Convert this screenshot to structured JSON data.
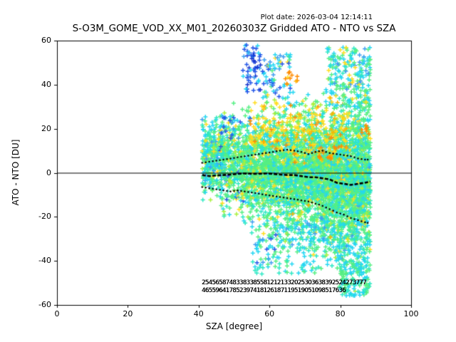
{
  "header": {
    "title": "S-O3M_GOME_VOD_XX_M01_20260303Z Gridded ATO - NTO vs SZA",
    "plot_date": "Plot date: 2026-03-04 12:14:11"
  },
  "chart_data": {
    "type": "scatter",
    "title": "S-O3M_GOME_VOD_XX_M01_20260303Z Gridded ATO - NTO vs SZA",
    "xlabel": "SZA [degree]",
    "ylabel": "ATO - NTO [DU]",
    "xlim": [
      0,
      100
    ],
    "ylim": [
      -60,
      60
    ],
    "x_ticks": [
      0,
      20,
      40,
      60,
      80,
      100
    ],
    "y_ticks": [
      -60,
      -40,
      -20,
      0,
      20,
      40,
      60
    ],
    "grid": false,
    "legend": "none",
    "marker": "plus",
    "zero_line_y": 0,
    "scatter_x_range": [
      41,
      88.5
    ],
    "stat_x": [
      41,
      43,
      45,
      47,
      49,
      51,
      53,
      55,
      57,
      59,
      61,
      63,
      65,
      67,
      69,
      71,
      73,
      75,
      77,
      79,
      81,
      83,
      85,
      87,
      88.5
    ],
    "median_line": [
      -1,
      -1.5,
      -1.2,
      -1,
      -0.8,
      -0.5,
      -0.3,
      -0.5,
      -0.5,
      -0.3,
      -0.5,
      -0.8,
      -1,
      -1,
      -1.5,
      -2,
      -2,
      -2.5,
      -3,
      -4.5,
      -5,
      -5.5,
      -5,
      -4.5,
      -4
    ],
    "upper_dotted": [
      4.5,
      5,
      5.5,
      6,
      6.5,
      7,
      7.5,
      8,
      8.5,
      9,
      9.5,
      10,
      10.5,
      10,
      9.5,
      8.5,
      9.5,
      10,
      9,
      8.5,
      8,
      7.5,
      6.5,
      6,
      6
    ],
    "lower_dotted": [
      -6.5,
      -7,
      -7.5,
      -8,
      -8.5,
      -8,
      -8.5,
      -9,
      -9.5,
      -10,
      -10.5,
      -11,
      -11.5,
      -12,
      -12.5,
      -13,
      -14,
      -15,
      -16.5,
      -18,
      -19,
      -20.5,
      -21.5,
      -22.5,
      -23
    ],
    "bin_count_rows": [
      {
        "y": -50,
        "text": "254565874833833855812121332025303638392524273777"
      },
      {
        "y": -53.5,
        "text": "465596417852397418126187119519051098517636"
      }
    ],
    "palette": {
      "green": "#55ef83",
      "teal": "#2ce8c4",
      "cyan": "#24d6f2",
      "skyblue": "#3f9ff0",
      "blue": "#2356e8",
      "darkblue": "#1633cc",
      "yellow": "#ffdd1f",
      "gold": "#ffb300",
      "orange": "#ff8c00",
      "greenyellow": "#a8f03c",
      "stat_black": "#000000",
      "axes_black": "#000000"
    },
    "seed": 42,
    "scatter_clusters": [
      {
        "x0": 41,
        "x1": 46,
        "n": 240,
        "dist": {
          "t": "g",
          "c": 6,
          "s": 8,
          "lo": -14,
          "hi": 28
        },
        "cols": [
          [
            "green",
            50
          ],
          [
            "teal",
            16
          ],
          [
            "cyan",
            16
          ],
          [
            "greenyellow",
            8
          ],
          [
            "yellow",
            8
          ],
          [
            "skyblue",
            2
          ]
        ]
      },
      {
        "x0": 46,
        "x1": 52,
        "n": 360,
        "dist": {
          "t": "g",
          "c": 4,
          "s": 10,
          "lo": -22,
          "hi": 34
        },
        "cols": [
          [
            "green",
            52
          ],
          [
            "teal",
            15
          ],
          [
            "cyan",
            15
          ],
          [
            "greenyellow",
            8
          ],
          [
            "yellow",
            8
          ],
          [
            "blue",
            2
          ]
        ]
      },
      {
        "x0": 52,
        "x1": 58,
        "n": 470,
        "dist": {
          "t": "g",
          "c": 3,
          "s": 11,
          "lo": -30,
          "hi": 38
        },
        "cols": [
          [
            "green",
            52
          ],
          [
            "teal",
            14
          ],
          [
            "cyan",
            16
          ],
          [
            "greenyellow",
            8
          ],
          [
            "yellow",
            9
          ],
          [
            "blue",
            1
          ]
        ]
      },
      {
        "x0": 58,
        "x1": 64,
        "n": 560,
        "dist": {
          "t": "g",
          "c": 1,
          "s": 12,
          "lo": -38,
          "hi": 38
        },
        "cols": [
          [
            "green",
            52
          ],
          [
            "teal",
            14
          ],
          [
            "cyan",
            17
          ],
          [
            "greenyellow",
            8
          ],
          [
            "yellow",
            9
          ]
        ]
      },
      {
        "x0": 64,
        "x1": 70,
        "n": 660,
        "dist": {
          "t": "g",
          "c": 0,
          "s": 13,
          "lo": -42,
          "hi": 38
        },
        "cols": [
          [
            "green",
            50
          ],
          [
            "teal",
            15
          ],
          [
            "cyan",
            18
          ],
          [
            "greenyellow",
            8
          ],
          [
            "yellow",
            8
          ],
          [
            "gold",
            1
          ]
        ]
      },
      {
        "x0": 70,
        "x1": 76,
        "n": 780,
        "dist": {
          "t": "g",
          "c": -1,
          "s": 14,
          "lo": -46,
          "hi": 38
        },
        "cols": [
          [
            "green",
            48
          ],
          [
            "teal",
            16
          ],
          [
            "cyan",
            20
          ],
          [
            "greenyellow",
            7
          ],
          [
            "yellow",
            8
          ],
          [
            "gold",
            1
          ]
        ]
      },
      {
        "x0": 76,
        "x1": 82,
        "n": 920,
        "dist": {
          "t": "g",
          "c": -2,
          "s": 15,
          "lo": -52,
          "hi": 40
        },
        "cols": [
          [
            "green",
            46
          ],
          [
            "teal",
            16
          ],
          [
            "cyan",
            22
          ],
          [
            "greenyellow",
            7
          ],
          [
            "yellow",
            8
          ],
          [
            "gold",
            1
          ]
        ]
      },
      {
        "x0": 82,
        "x1": 88.5,
        "n": 1020,
        "dist": {
          "t": "g",
          "c": -2,
          "s": 16,
          "lo": -56,
          "hi": 44
        },
        "cols": [
          [
            "green",
            44
          ],
          [
            "teal",
            16
          ],
          [
            "cyan",
            24
          ],
          [
            "greenyellow",
            7
          ],
          [
            "yellow",
            8
          ],
          [
            "skyblue",
            1
          ]
        ]
      },
      {
        "x0": 55,
        "x1": 88,
        "n": 240,
        "dist": {
          "t": "u",
          "lo": -46,
          "hi": -22
        },
        "cols": [
          [
            "cyan",
            48
          ],
          [
            "teal",
            22
          ],
          [
            "green",
            26
          ],
          [
            "skyblue",
            4
          ]
        ]
      },
      {
        "x0": 80,
        "x1": 88.5,
        "n": 130,
        "dist": {
          "t": "u",
          "lo": -56,
          "hi": -40
        },
        "cols": [
          [
            "cyan",
            50
          ],
          [
            "green",
            30
          ],
          [
            "teal",
            20
          ]
        ]
      },
      {
        "x0": 52.5,
        "x1": 57.5,
        "n": 55,
        "dist": {
          "t": "u",
          "lo": 36,
          "hi": 58
        },
        "cols": [
          [
            "blue",
            58
          ],
          [
            "darkblue",
            18
          ],
          [
            "cyan",
            18
          ],
          [
            "skyblue",
            6
          ]
        ]
      },
      {
        "x0": 58,
        "x1": 66,
        "n": 70,
        "dist": {
          "t": "u",
          "lo": 34,
          "hi": 54
        },
        "cols": [
          [
            "cyan",
            40
          ],
          [
            "blue",
            22
          ],
          [
            "skyblue",
            12
          ],
          [
            "green",
            16
          ],
          [
            "yellow",
            10
          ]
        ]
      },
      {
        "x0": 64.5,
        "x1": 68,
        "n": 10,
        "dist": {
          "t": "u",
          "lo": 40,
          "hi": 46
        },
        "cols": [
          [
            "orange",
            70
          ],
          [
            "gold",
            30
          ]
        ]
      },
      {
        "x0": 76,
        "x1": 88.5,
        "n": 210,
        "dist": {
          "t": "u",
          "lo": 30,
          "hi": 57
        },
        "cols": [
          [
            "cyan",
            35
          ],
          [
            "green",
            32
          ],
          [
            "yellow",
            14
          ],
          [
            "skyblue",
            12
          ],
          [
            "teal",
            7
          ]
        ]
      },
      {
        "x0": 54,
        "x1": 82,
        "n": 190,
        "dist": {
          "t": "g",
          "c": 18,
          "s": 8,
          "lo": 4,
          "hi": 34
        },
        "cols": [
          [
            "yellow",
            58
          ],
          [
            "gold",
            26
          ],
          [
            "greenyellow",
            10
          ],
          [
            "orange",
            6
          ]
        ]
      },
      {
        "x0": 74,
        "x1": 80,
        "n": 18,
        "dist": {
          "t": "u",
          "lo": 6,
          "hi": 13
        },
        "cols": [
          [
            "orange",
            80
          ],
          [
            "gold",
            20
          ]
        ]
      },
      {
        "x0": 86,
        "x1": 88.5,
        "n": 8,
        "dist": {
          "t": "u",
          "lo": 17,
          "hi": 22
        },
        "cols": [
          [
            "orange",
            100
          ]
        ]
      },
      {
        "x0": 41,
        "x1": 47,
        "n": 60,
        "dist": {
          "t": "u",
          "lo": -8,
          "hi": 26
        },
        "cols": [
          [
            "cyan",
            55
          ],
          [
            "skyblue",
            20
          ],
          [
            "teal",
            25
          ]
        ]
      },
      {
        "x0": 46,
        "x1": 52,
        "n": 12,
        "dist": {
          "t": "u",
          "lo": 15,
          "hi": 25
        },
        "cols": [
          [
            "blue",
            60
          ],
          [
            "skyblue",
            40
          ]
        ]
      },
      {
        "x0": 56,
        "x1": 62,
        "n": 12,
        "dist": {
          "t": "u",
          "lo": -42,
          "hi": -28
        },
        "cols": [
          [
            "blue",
            40
          ],
          [
            "skyblue",
            40
          ],
          [
            "cyan",
            20
          ]
        ]
      },
      {
        "x0": 70,
        "x1": 76,
        "n": 10,
        "dist": {
          "t": "u",
          "lo": -30,
          "hi": -18
        },
        "cols": [
          [
            "skyblue",
            60
          ],
          [
            "cyan",
            40
          ]
        ]
      }
    ]
  }
}
